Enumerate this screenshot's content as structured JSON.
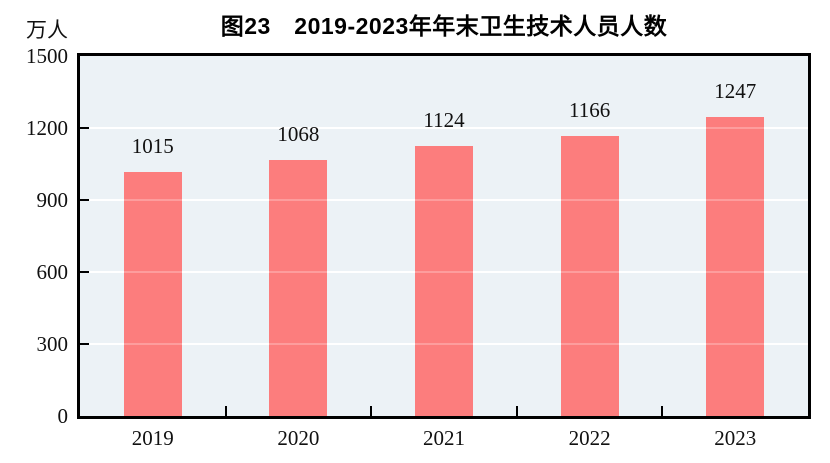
{
  "chart_data": {
    "type": "bar",
    "title": "图23　2019-2023年年末卫生技术人员人数",
    "ylabel": "万人",
    "xlabel": "",
    "categories": [
      "2019",
      "2020",
      "2021",
      "2022",
      "2023"
    ],
    "values": [
      1015,
      1068,
      1124,
      1166,
      1247
    ],
    "value_labels": [
      "1015",
      "1068",
      "1124",
      "1166",
      "1247"
    ],
    "ylim": [
      0,
      1500
    ],
    "yticks": [
      0,
      300,
      600,
      900,
      1200,
      1500
    ],
    "ytick_labels": [
      "0",
      "300",
      "600",
      "900",
      "1200",
      "1500"
    ],
    "grid": "horizontal-white",
    "legend": "none",
    "colors": {
      "bar": "#fc7d7d",
      "plot_background": "#ecf2f6",
      "gridline": "#ffffff",
      "gridline_over_bar": "rgba(255,255,255,0.25)",
      "axis": "#000000",
      "text": "#111111",
      "page_background": "#ffffff"
    }
  }
}
